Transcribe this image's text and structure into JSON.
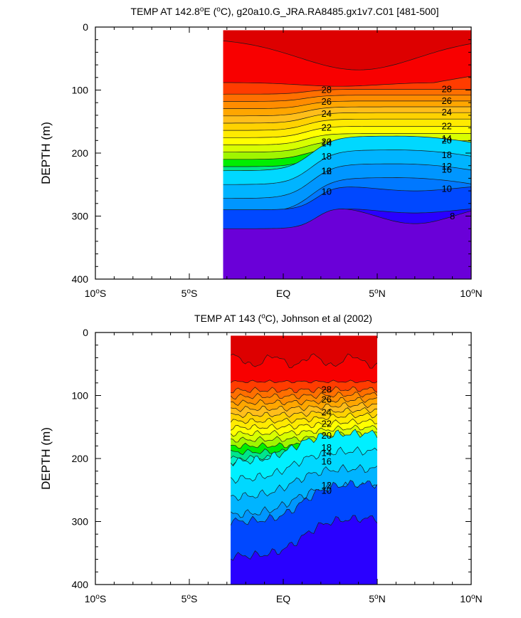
{
  "chart_data": [
    {
      "type": "contour",
      "title": "TEMP AT 142.8°E (°C), g20a10.G_JRA.RA8485.gx1v7.C01 [481-500]",
      "title_parts": {
        "pre": "TEMP AT 142.8",
        "sup": "o",
        "post": "E (",
        "sup2": "o",
        "post2": "C), g20a10.G_JRA.RA8485.gx1v7.C01 [481-500]"
      },
      "ylabel": "DEPTH (m)",
      "yticks": [
        "0",
        "100",
        "200",
        "300",
        "400"
      ],
      "xticks": [
        "10°S",
        "5°S",
        "EQ",
        "5°N",
        "10°N"
      ],
      "xlim": [
        -10,
        10
      ],
      "ylim": [
        400,
        0
      ],
      "data_xrange": [
        -3.2,
        10
      ],
      "contour_labels": [
        "28",
        "26",
        "24",
        "22",
        "20",
        "18",
        "16",
        "14",
        "12",
        "10",
        "28",
        "26",
        "24",
        "22",
        "20",
        "18",
        "16",
        "14",
        "12",
        "10",
        "8"
      ],
      "levels": [
        30,
        29,
        28,
        27,
        26,
        25,
        24,
        23,
        22,
        21,
        20,
        19,
        18,
        17,
        16,
        15,
        14,
        13,
        12,
        11,
        10,
        9,
        8
      ]
    },
    {
      "type": "contour",
      "title": "TEMP AT 143 (°C), Johnson et al (2002)",
      "title_parts": {
        "pre": "TEMP AT 143 (",
        "sup": "o",
        "post": "C), Johnson et al (2002)"
      },
      "ylabel": "DEPTH (m)",
      "yticks": [
        "0",
        "100",
        "200",
        "300",
        "400"
      ],
      "xticks": [
        "10°S",
        "5°S",
        "EQ",
        "5°N",
        "10°N"
      ],
      "xlim": [
        -10,
        10
      ],
      "ylim": [
        400,
        0
      ],
      "data_xrange": [
        -2.8,
        5
      ],
      "contour_labels": [
        "28",
        "26",
        "24",
        "22",
        "20",
        "18",
        "16",
        "14",
        "12",
        "10"
      ],
      "levels": [
        30,
        29,
        28,
        27,
        26,
        25,
        24,
        23,
        22,
        21,
        20,
        19,
        18,
        17,
        16,
        15,
        14,
        13,
        12,
        11,
        10,
        9
      ]
    }
  ],
  "colors": {
    "t30": "#dd0000",
    "t29": "#f80000",
    "t28": "#ff3c00",
    "t27": "#ff6f00",
    "t26": "#ff8c00",
    "t25": "#ffa600",
    "t24": "#ffbe1a",
    "t23": "#ffd200",
    "t22": "#ffea00",
    "t21": "#ffff00",
    "t20": "#d8ff00",
    "t19": "#a0f500",
    "t18": "#00ee00",
    "t17": "#00e68c",
    "t16": "#00f0c8",
    "t15": "#00ffe6",
    "t14": "#00f0ff",
    "t13": "#00d8ff",
    "t12": "#00b4ff",
    "t11": "#0096ff",
    "t10": "#0078ff",
    "t9": "#0048ff",
    "t8": "#2a00ff",
    "t7": "#6a00d8"
  }
}
